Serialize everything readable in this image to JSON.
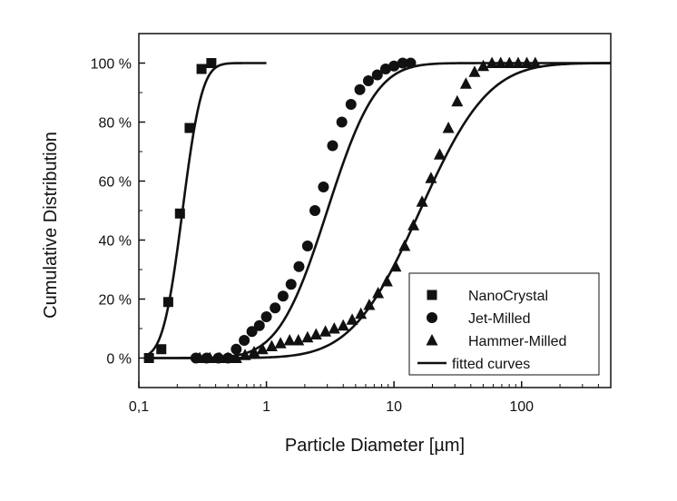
{
  "chart_data": {
    "type": "scatter",
    "title": "",
    "xlabel": "Particle Diameter [µm]",
    "ylabel": "Cumulative Distribution",
    "x_scale": "log",
    "xlim": [
      0.1,
      500
    ],
    "ylim": [
      -10,
      110
    ],
    "x_ticks": [
      {
        "value": 0.1,
        "label": "0,1"
      },
      {
        "value": 1,
        "label": "1"
      },
      {
        "value": 10,
        "label": "10"
      },
      {
        "value": 100,
        "label": "100"
      }
    ],
    "y_ticks": [
      {
        "value": 0,
        "label": "0 %"
      },
      {
        "value": 20,
        "label": "20 %"
      },
      {
        "value": 40,
        "label": "40 %"
      },
      {
        "value": 60,
        "label": "60 %"
      },
      {
        "value": 80,
        "label": "80 %"
      },
      {
        "value": 100,
        "label": "100 %"
      }
    ],
    "grid": false,
    "legend_position": "bottom-right",
    "legend": [
      {
        "label": "NanoCrystal",
        "marker": "square"
      },
      {
        "label": "Jet-Milled",
        "marker": "circle"
      },
      {
        "label": "Hammer-Milled",
        "marker": "triangle"
      },
      {
        "label": "fitted curves",
        "marker": "line"
      }
    ],
    "series": [
      {
        "name": "NanoCrystal",
        "marker": "square",
        "x": [
          0.12,
          0.15,
          0.17,
          0.21,
          0.25,
          0.31,
          0.37
        ],
        "y": [
          0,
          3,
          19,
          49,
          78,
          98,
          100
        ]
      },
      {
        "name": "Jet-Milled",
        "marker": "circle",
        "x": [
          0.28,
          0.34,
          0.42,
          0.5,
          0.58,
          0.67,
          0.77,
          0.88,
          1.0,
          1.17,
          1.35,
          1.56,
          1.8,
          2.1,
          2.4,
          2.8,
          3.3,
          3.9,
          4.6,
          5.4,
          6.3,
          7.4,
          8.6,
          10.0,
          11.7,
          13.5
        ],
        "y": [
          0,
          0,
          0,
          0,
          3,
          6,
          9,
          11,
          14,
          17,
          21,
          25,
          31,
          38,
          50,
          58,
          72,
          80,
          86,
          91,
          94,
          96,
          98,
          99,
          100,
          100
        ]
      },
      {
        "name": "Hammer-Milled",
        "marker": "triangle",
        "x": [
          0.3,
          0.36,
          0.43,
          0.5,
          0.58,
          0.68,
          0.8,
          0.93,
          1.1,
          1.29,
          1.52,
          1.78,
          2.1,
          2.45,
          2.9,
          3.4,
          4.0,
          4.7,
          5.5,
          6.4,
          7.5,
          8.8,
          10.3,
          12.1,
          14.2,
          16.6,
          19.5,
          22.8,
          26.7,
          31.3,
          36.6,
          42.8,
          50.1,
          58.6,
          68.6,
          80.3,
          94.0,
          110.0,
          128.0
        ],
        "y": [
          0,
          0,
          0,
          0,
          0,
          1,
          2,
          3,
          4,
          5,
          6,
          6,
          7,
          8,
          9,
          10,
          11,
          13,
          15,
          18,
          22,
          26,
          31,
          38,
          45,
          53,
          61,
          69,
          78,
          87,
          93,
          97,
          99,
          100,
          100,
          100,
          100,
          100,
          100
        ]
      },
      {
        "name": "fitted curves",
        "marker": "line",
        "curves": [
          {
            "fits": "NanoCrystal",
            "median": 0.22,
            "log_sd": 0.12,
            "x_range": [
              0.12,
              1.0
            ]
          },
          {
            "fits": "Jet-Milled",
            "median": 3.0,
            "log_sd": 0.3,
            "x_range": [
              0.12,
              500
            ]
          },
          {
            "fits": "Hammer-Milled",
            "median": 16.0,
            "log_sd": 0.42,
            "x_range": [
              0.12,
              500
            ]
          }
        ]
      }
    ]
  }
}
